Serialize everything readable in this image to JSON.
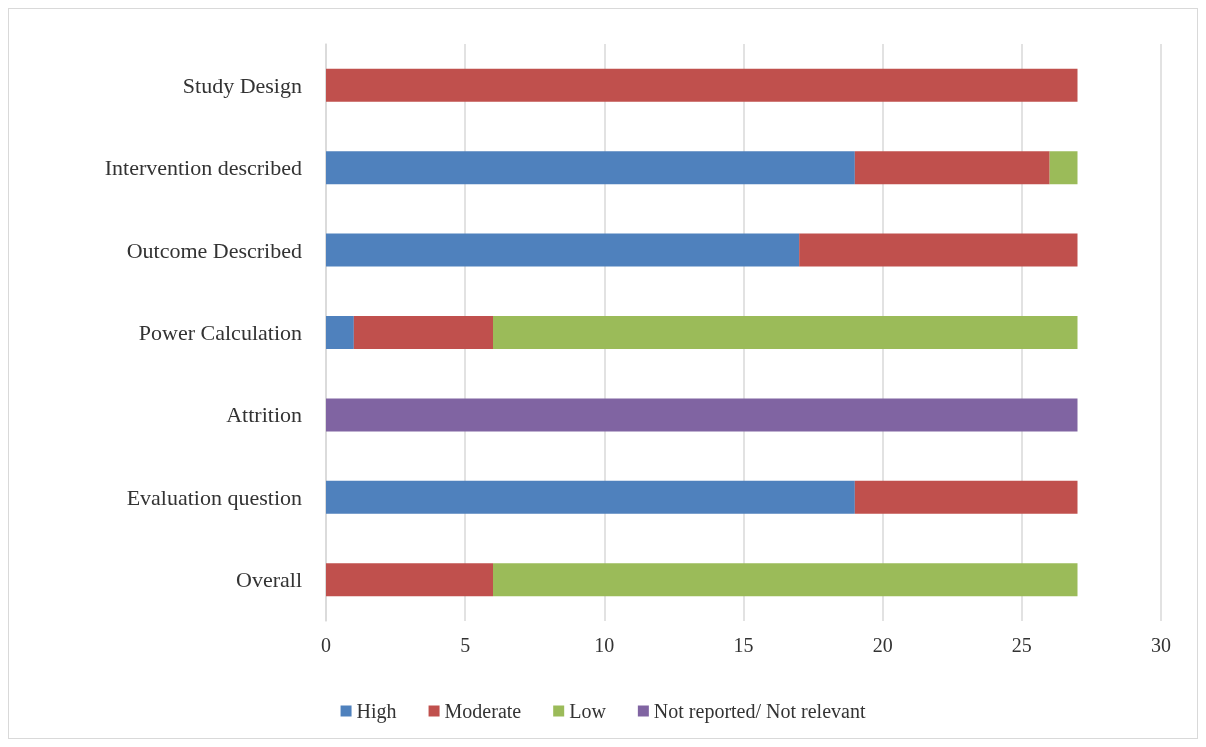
{
  "chart_data": {
    "type": "bar",
    "orientation": "horizontal",
    "stacked": true,
    "categories": [
      "Study Design",
      "Intervention described",
      "Outcome Described",
      "Power Calculation",
      "Attrition",
      "Evaluation question",
      "Overall"
    ],
    "series": [
      {
        "name": "High",
        "color": "#4f81bd",
        "values": [
          0,
          19,
          17,
          1,
          0,
          19,
          0
        ]
      },
      {
        "name": "Moderate",
        "color": "#c0504d",
        "values": [
          27,
          7,
          10,
          5,
          0,
          8,
          6
        ]
      },
      {
        "name": "Low",
        "color": "#9bbb59",
        "values": [
          0,
          1,
          0,
          21,
          0,
          0,
          21
        ]
      },
      {
        "name": "Not reported/ Not relevant",
        "color": "#8064a2",
        "values": [
          0,
          0,
          0,
          0,
          27,
          0,
          0
        ]
      }
    ],
    "xlim": [
      0,
      30
    ],
    "xticks": [
      0,
      5,
      10,
      15,
      20,
      25,
      30
    ],
    "grid": "x",
    "legend": "bottom"
  }
}
